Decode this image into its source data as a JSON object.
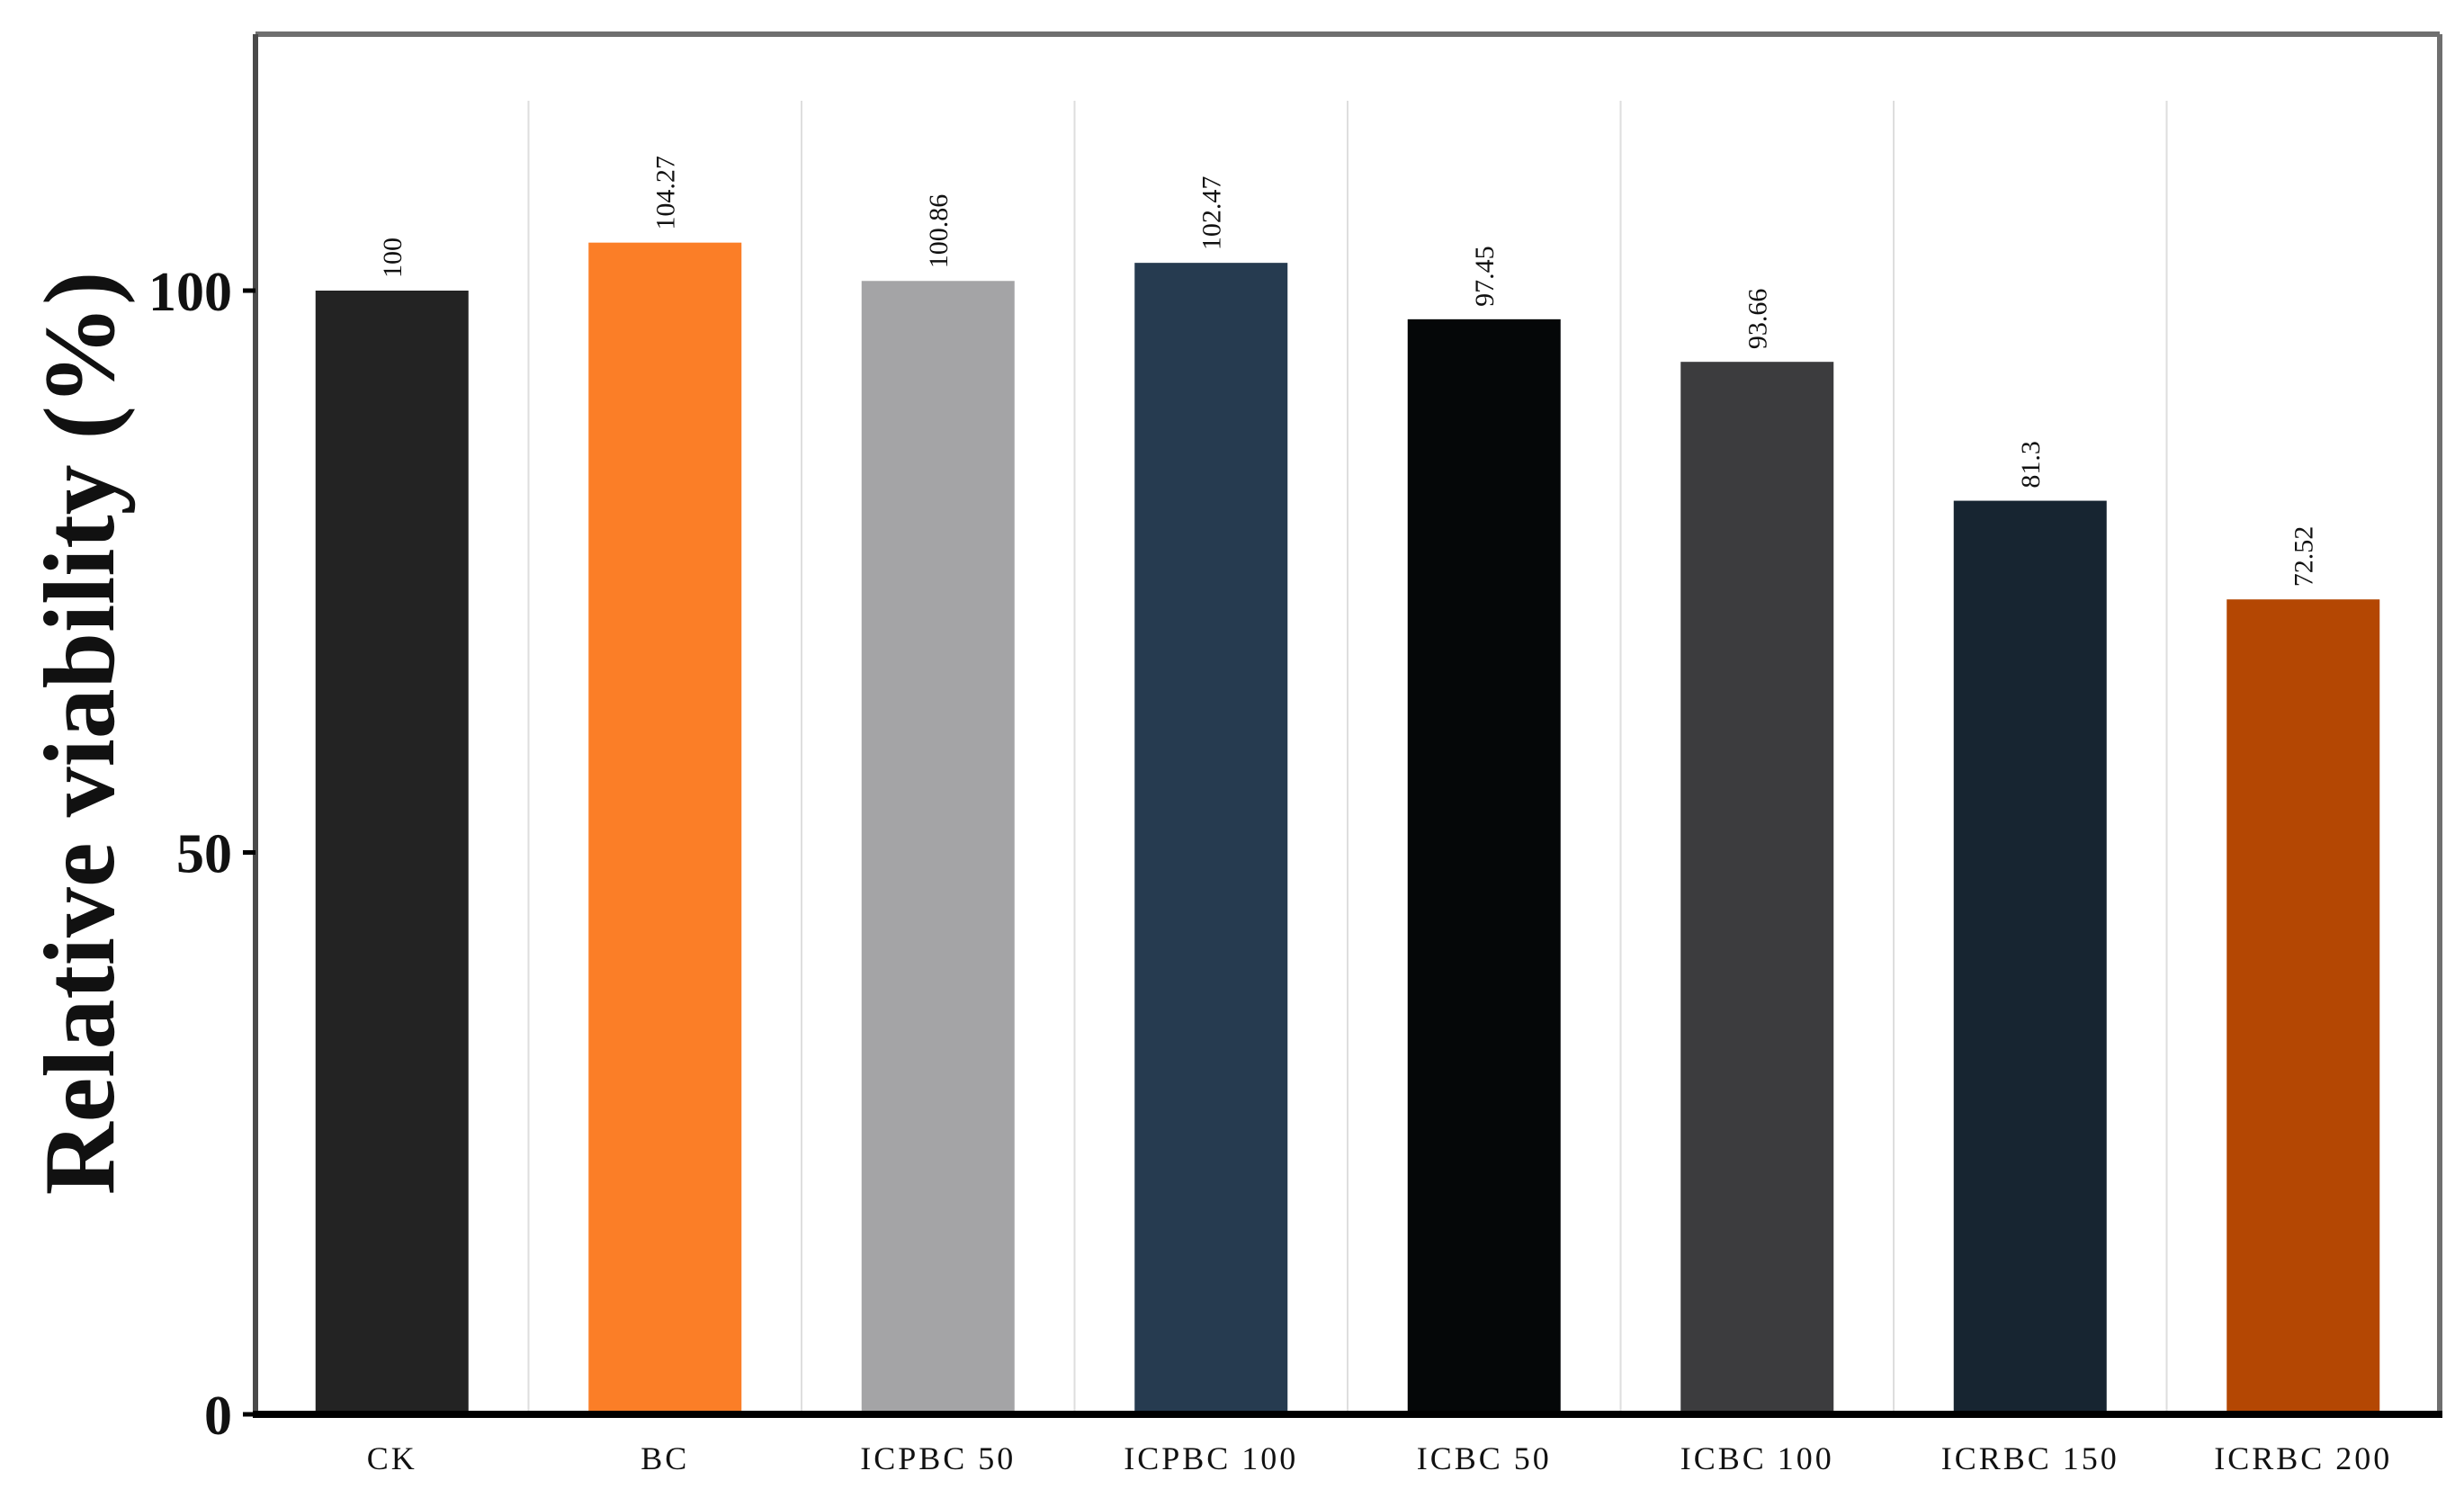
{
  "chart_data": {
    "type": "bar",
    "ylabel": "Relative viability (%)",
    "xlabel": "",
    "ylim": [
      0,
      120
    ],
    "yticks": [
      0,
      50,
      100
    ],
    "grid": "vertical separators between categories",
    "categories": [
      "CK",
      "BC",
      "ICPBC 50",
      "ICPBC 100",
      "ICBC 50",
      "ICBC 100",
      "ICRBC 150",
      "ICRBC 200"
    ],
    "values": [
      100,
      104.27,
      100.86,
      102.47,
      97.45,
      93.66,
      81.3,
      72.52
    ],
    "value_labels": [
      "100",
      "104.27",
      "100.86",
      "102.47",
      "97.45",
      "93.66",
      "81.3",
      "72.52"
    ],
    "colors": [
      "#232323",
      "#fb7e27",
      "#a4a4a6",
      "#263b50",
      "#050708",
      "#3c3c3e",
      "#172531",
      "#b44703"
    ]
  }
}
